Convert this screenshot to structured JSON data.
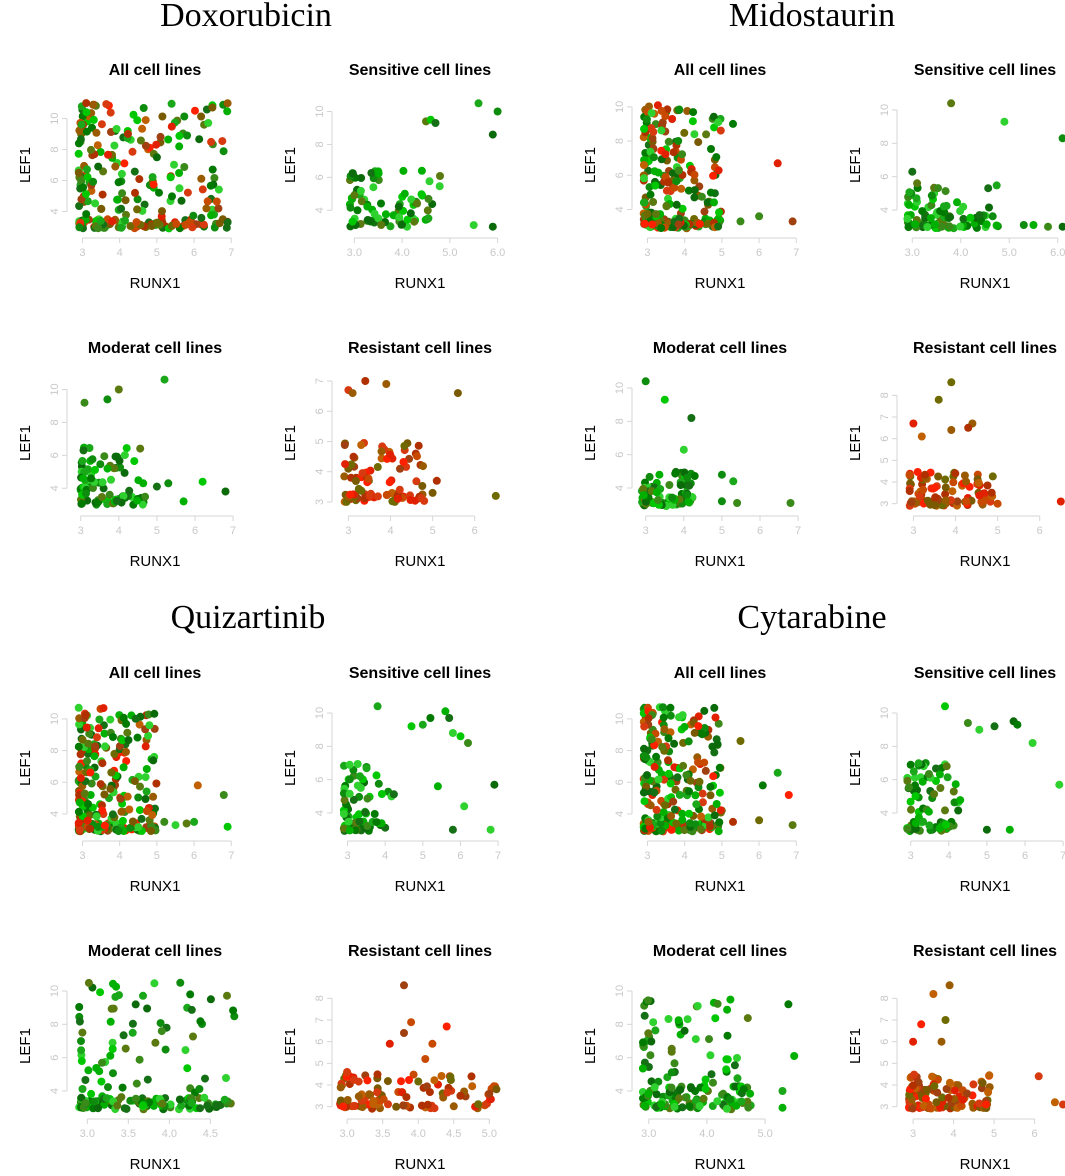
{
  "figure": {
    "drug_titles": [
      "Doxorubicin",
      "Midostaurin",
      "Quizartinib",
      "Cytarabine"
    ]
  },
  "chart_data": [
    {
      "type": "scatter",
      "drug": "Doxorubicin",
      "title": "All cell lines",
      "xlabel": "RUNX1",
      "ylabel": "LEF1",
      "xlim": [
        2.8,
        7.1
      ],
      "ylim": [
        2.8,
        11.2
      ],
      "xticks": [
        3,
        4,
        5,
        6,
        7
      ],
      "yticks": [
        4,
        6,
        8,
        10
      ],
      "n": 260,
      "x_range": [
        2.9,
        6.9
      ],
      "y_range": [
        2.9,
        11.0
      ],
      "palette": "mixed",
      "outliers": [
        [
          6.5,
          6.7
        ],
        [
          5.6,
          8.2
        ],
        [
          4.7,
          9.9
        ],
        [
          5.0,
          7.5
        ],
        [
          6.9,
          3.3
        ],
        [
          3.1,
          11.0
        ]
      ]
    },
    {
      "type": "scatter",
      "drug": "Doxorubicin",
      "title": "Sensitive cell lines",
      "xlabel": "RUNX1",
      "ylabel": "LEF1",
      "xlim": [
        2.7,
        6.05
      ],
      "ylim": [
        2.8,
        10.7
      ],
      "xticks": [
        3.0,
        4.0,
        5.0,
        6.0
      ],
      "tick_decimals": 1,
      "yticks": [
        4,
        6,
        8,
        10
      ],
      "n": 85,
      "x_range": [
        2.9,
        4.8
      ],
      "y_range": [
        3.0,
        6.5
      ],
      "palette": "green",
      "outliers": [
        [
          5.6,
          10.5
        ],
        [
          6.0,
          10.0
        ],
        [
          5.9,
          8.6
        ],
        [
          4.5,
          9.4
        ],
        [
          4.6,
          9.5
        ],
        [
          4.7,
          9.3
        ],
        [
          5.5,
          3.1
        ],
        [
          5.9,
          3.0
        ]
      ]
    },
    {
      "type": "scatter",
      "drug": "Doxorubicin",
      "title": "Moderat cell lines",
      "xlabel": "RUNX1",
      "ylabel": "LEF1",
      "xlim": [
        2.85,
        7.05
      ],
      "ylim": [
        2.8,
        10.7
      ],
      "xticks": [
        3,
        4,
        5,
        6,
        7
      ],
      "yticks": [
        4,
        6,
        8,
        10
      ],
      "n": 90,
      "x_range": [
        3.0,
        4.7
      ],
      "y_range": [
        3.0,
        6.5
      ],
      "palette": "green",
      "outliers": [
        [
          5.2,
          10.6
        ],
        [
          4.0,
          10.0
        ],
        [
          3.7,
          9.4
        ],
        [
          3.1,
          9.2
        ],
        [
          6.8,
          3.8
        ],
        [
          6.2,
          4.4
        ],
        [
          5.3,
          4.3
        ],
        [
          5.0,
          4.1
        ],
        [
          5.7,
          3.2
        ]
      ]
    },
    {
      "type": "scatter",
      "drug": "Doxorubicin",
      "title": "Resistant cell lines",
      "xlabel": "RUNX1",
      "ylabel": "LEF1",
      "xlim": [
        2.8,
        6.6
      ],
      "ylim": [
        2.8,
        7.1
      ],
      "xticks": [
        3,
        4,
        5,
        6
      ],
      "yticks": [
        3,
        4,
        5,
        6,
        7
      ],
      "n": 90,
      "x_range": [
        2.9,
        4.8
      ],
      "y_range": [
        3.0,
        5.0
      ],
      "palette": "red",
      "outliers": [
        [
          3.4,
          7.0
        ],
        [
          3.9,
          6.9
        ],
        [
          3.0,
          6.7
        ],
        [
          3.1,
          6.6
        ],
        [
          5.6,
          6.6
        ],
        [
          6.5,
          3.2
        ],
        [
          5.1,
          3.7
        ],
        [
          5.0,
          3.3
        ]
      ]
    },
    {
      "type": "scatter",
      "drug": "Midostaurin",
      "title": "All cell lines",
      "xlabel": "RUNX1",
      "ylabel": "LEF1",
      "xlim": [
        2.8,
        7.1
      ],
      "ylim": [
        2.8,
        10.4
      ],
      "xticks": [
        3,
        4,
        5,
        6,
        7
      ],
      "yticks": [
        4,
        6,
        8,
        10
      ],
      "n": 250,
      "x_range": [
        2.9,
        5.0
      ],
      "y_range": [
        2.9,
        10.2
      ],
      "palette": "mixed",
      "outliers": [
        [
          6.5,
          6.7
        ],
        [
          6.9,
          3.3
        ],
        [
          5.3,
          9.0
        ],
        [
          6.0,
          3.6
        ],
        [
          5.5,
          3.3
        ],
        [
          4.9,
          3.0
        ]
      ]
    },
    {
      "type": "scatter",
      "drug": "Midostaurin",
      "title": "Sensitive cell lines",
      "xlabel": "RUNX1",
      "ylabel": "LEF1",
      "xlim": [
        2.85,
        6.15
      ],
      "ylim": [
        2.8,
        10.6
      ],
      "xticks": [
        3.0,
        4.0,
        5.0,
        6.0
      ],
      "tick_decimals": 1,
      "yticks": [
        4,
        6,
        8,
        10
      ],
      "n": 95,
      "x_range": [
        2.9,
        4.8
      ],
      "y_range": [
        2.9,
        5.5
      ],
      "palette": "green",
      "outliers": [
        [
          3.8,
          10.4
        ],
        [
          4.9,
          9.3
        ],
        [
          6.1,
          8.3
        ],
        [
          3.0,
          6.3
        ],
        [
          3.1,
          5.6
        ],
        [
          5.3,
          3.1
        ],
        [
          5.5,
          3.1
        ],
        [
          5.8,
          3.0
        ],
        [
          6.1,
          3.0
        ]
      ]
    },
    {
      "type": "scatter",
      "drug": "Midostaurin",
      "title": "Moderat cell lines",
      "xlabel": "RUNX1",
      "ylabel": "LEF1",
      "xlim": [
        2.85,
        7.05
      ],
      "ylim": [
        2.8,
        10.6
      ],
      "xticks": [
        3,
        4,
        5,
        6,
        7
      ],
      "yticks": [
        4,
        6,
        8,
        10
      ],
      "n": 85,
      "x_range": [
        2.9,
        4.3
      ],
      "y_range": [
        2.9,
        5.0
      ],
      "palette": "green",
      "outliers": [
        [
          3.0,
          10.4
        ],
        [
          3.5,
          9.3
        ],
        [
          4.2,
          8.2
        ],
        [
          5.0,
          4.8
        ],
        [
          5.3,
          4.4
        ],
        [
          5.0,
          3.2
        ],
        [
          5.4,
          3.1
        ],
        [
          6.8,
          3.1
        ],
        [
          4.0,
          6.3
        ]
      ]
    },
    {
      "type": "scatter",
      "drug": "Midostaurin",
      "title": "Resistant cell lines",
      "xlabel": "RUNX1",
      "ylabel": "LEF1",
      "xlim": [
        2.8,
        6.6
      ],
      "ylim": [
        2.8,
        8.8
      ],
      "xticks": [
        3,
        4,
        5,
        6
      ],
      "yticks": [
        3,
        4,
        5,
        6,
        7,
        8
      ],
      "n": 100,
      "x_range": [
        2.9,
        4.9
      ],
      "y_range": [
        2.9,
        4.5
      ],
      "palette": "red",
      "outliers": [
        [
          3.9,
          8.6
        ],
        [
          3.6,
          7.8
        ],
        [
          3.0,
          6.7
        ],
        [
          4.4,
          6.7
        ],
        [
          4.3,
          6.5
        ],
        [
          3.9,
          6.4
        ],
        [
          3.2,
          6.1
        ],
        [
          6.5,
          3.1
        ],
        [
          5.0,
          3.0
        ]
      ]
    },
    {
      "type": "scatter",
      "drug": "Quizartinib",
      "title": "All cell lines",
      "xlabel": "RUNX1",
      "ylabel": "LEF1",
      "xlim": [
        2.8,
        7.1
      ],
      "ylim": [
        2.8,
        11.0
      ],
      "xticks": [
        3,
        4,
        5,
        6,
        7
      ],
      "yticks": [
        4,
        6,
        8,
        10
      ],
      "n": 270,
      "x_range": [
        2.9,
        5.0
      ],
      "y_range": [
        2.9,
        10.8
      ],
      "palette": "mixed",
      "outliers": [
        [
          6.8,
          5.2
        ],
        [
          6.1,
          5.8
        ],
        [
          6.9,
          3.2
        ],
        [
          5.5,
          3.3
        ],
        [
          6.0,
          3.5
        ],
        [
          5.8,
          3.4
        ],
        [
          5.2,
          3.5
        ],
        [
          4.8,
          9.6
        ]
      ]
    },
    {
      "type": "scatter",
      "drug": "Quizartinib",
      "title": "Sensitive cell lines",
      "xlabel": "RUNX1",
      "ylabel": "LEF1",
      "xlim": [
        2.8,
        7.05
      ],
      "ylim": [
        2.8,
        10.6
      ],
      "xticks": [
        3,
        4,
        5,
        6,
        7
      ],
      "yticks": [
        4,
        6,
        8,
        10
      ],
      "n": 70,
      "x_range": [
        2.9,
        4.3
      ],
      "y_range": [
        2.9,
        7.0
      ],
      "palette": "green",
      "outliers": [
        [
          3.8,
          10.4
        ],
        [
          5.6,
          10.1
        ],
        [
          5.7,
          9.7
        ],
        [
          5.2,
          9.7
        ],
        [
          5.0,
          9.3
        ],
        [
          4.7,
          9.2
        ],
        [
          5.8,
          8.8
        ],
        [
          6.0,
          8.6
        ],
        [
          6.2,
          8.2
        ],
        [
          6.9,
          5.7
        ],
        [
          6.1,
          4.4
        ],
        [
          5.4,
          5.6
        ],
        [
          6.8,
          3.0
        ],
        [
          5.8,
          3.0
        ]
      ]
    },
    {
      "type": "scatter",
      "drug": "Quizartinib",
      "title": "Moderat cell lines",
      "xlabel": "RUNX1",
      "ylabel": "LEF1",
      "xlim": [
        2.85,
        4.8
      ],
      "ylim": [
        2.8,
        10.6
      ],
      "xticks": [
        3.0,
        3.5,
        4.0,
        4.5
      ],
      "tick_decimals": 1,
      "yticks": [
        4,
        6,
        8,
        10
      ],
      "n": 115,
      "x_range": [
        2.9,
        4.8
      ],
      "y_range": [
        2.9,
        10.5
      ],
      "palette": "green",
      "bands": [
        [
          2.9,
          3.6,
          60
        ]
      ],
      "outliers": []
    },
    {
      "type": "scatter",
      "drug": "Quizartinib",
      "title": "Resistant cell lines",
      "xlabel": "RUNX1",
      "ylabel": "LEF1",
      "xlim": [
        2.9,
        5.15
      ],
      "ylim": [
        2.8,
        8.8
      ],
      "xticks": [
        3.0,
        3.5,
        4.0,
        4.5,
        5.0
      ],
      "tick_decimals": 1,
      "yticks": [
        3,
        4,
        5,
        6,
        7,
        8
      ],
      "n": 110,
      "x_range": [
        2.9,
        5.1
      ],
      "y_range": [
        2.9,
        4.5
      ],
      "palette": "red",
      "outliers": [
        [
          3.8,
          8.6
        ],
        [
          3.9,
          6.9
        ],
        [
          4.4,
          6.7
        ],
        [
          3.8,
          6.4
        ],
        [
          4.2,
          5.9
        ],
        [
          3.6,
          5.9
        ],
        [
          4.1,
          5.2
        ],
        [
          3.0,
          4.6
        ],
        [
          5.1,
          3.8
        ],
        [
          5.0,
          3.6
        ]
      ]
    },
    {
      "type": "scatter",
      "drug": "Cytarabine",
      "title": "All cell lines",
      "xlabel": "RUNX1",
      "ylabel": "LEF1",
      "xlim": [
        2.8,
        7.1
      ],
      "ylim": [
        2.8,
        11.0
      ],
      "xticks": [
        3,
        4,
        5,
        6,
        7
      ],
      "yticks": [
        4,
        6,
        8,
        10
      ],
      "n": 270,
      "x_range": [
        2.9,
        5.0
      ],
      "y_range": [
        2.9,
        10.8
      ],
      "palette": "mixed",
      "outliers": [
        [
          6.5,
          6.6
        ],
        [
          6.8,
          5.2
        ],
        [
          6.1,
          5.8
        ],
        [
          6.9,
          3.3
        ],
        [
          5.5,
          8.6
        ],
        [
          5.3,
          3.5
        ],
        [
          6.0,
          3.6
        ]
      ]
    },
    {
      "type": "scatter",
      "drug": "Cytarabine",
      "title": "Sensitive cell lines",
      "xlabel": "RUNX1",
      "ylabel": "LEF1",
      "xlim": [
        2.85,
        7.05
      ],
      "ylim": [
        2.8,
        10.6
      ],
      "xticks": [
        3,
        4,
        5,
        6,
        7
      ],
      "yticks": [
        4,
        6,
        8,
        10
      ],
      "n": 80,
      "x_range": [
        2.9,
        4.3
      ],
      "y_range": [
        2.9,
        7.0
      ],
      "palette": "green",
      "outliers": [
        [
          3.9,
          10.4
        ],
        [
          5.7,
          9.5
        ],
        [
          5.8,
          9.3
        ],
        [
          5.2,
          9.2
        ],
        [
          4.8,
          9.0
        ],
        [
          6.2,
          8.2
        ],
        [
          4.5,
          9.4
        ],
        [
          6.9,
          5.7
        ],
        [
          5.6,
          3.0
        ],
        [
          5.0,
          3.0
        ]
      ]
    },
    {
      "type": "scatter",
      "drug": "Cytarabine",
      "title": "Moderat cell lines",
      "xlabel": "RUNX1",
      "ylabel": "LEF1",
      "xlim": [
        2.85,
        5.6
      ],
      "ylim": [
        2.8,
        10.6
      ],
      "xticks": [
        3.0,
        4.0,
        5.0
      ],
      "tick_decimals": 1,
      "yticks": [
        4,
        6,
        8,
        10
      ],
      "n": 100,
      "x_range": [
        2.9,
        4.8
      ],
      "y_range": [
        2.9,
        9.5
      ],
      "palette": "green",
      "bands": [
        [
          2.9,
          4.3,
          55
        ]
      ],
      "outliers": [
        [
          5.5,
          6.1
        ],
        [
          5.4,
          9.2
        ],
        [
          5.3,
          4.0
        ],
        [
          5.3,
          3.0
        ]
      ]
    },
    {
      "type": "scatter",
      "drug": "Cytarabine",
      "title": "Resistant cell lines",
      "xlabel": "RUNX1",
      "ylabel": "LEF1",
      "xlim": [
        2.8,
        6.75
      ],
      "ylim": [
        2.8,
        8.8
      ],
      "xticks": [
        3,
        4,
        5,
        6
      ],
      "yticks": [
        3,
        4,
        5,
        6,
        7,
        8
      ],
      "n": 110,
      "x_range": [
        2.9,
        4.9
      ],
      "y_range": [
        2.9,
        4.5
      ],
      "palette": "red",
      "outliers": [
        [
          3.9,
          8.6
        ],
        [
          3.5,
          8.2
        ],
        [
          3.2,
          6.8
        ],
        [
          3.8,
          7.0
        ],
        [
          3.7,
          6.0
        ],
        [
          3.0,
          6.0
        ],
        [
          6.1,
          4.4
        ],
        [
          6.7,
          3.1
        ],
        [
          6.5,
          3.2
        ],
        [
          4.8,
          3.1
        ]
      ]
    }
  ]
}
